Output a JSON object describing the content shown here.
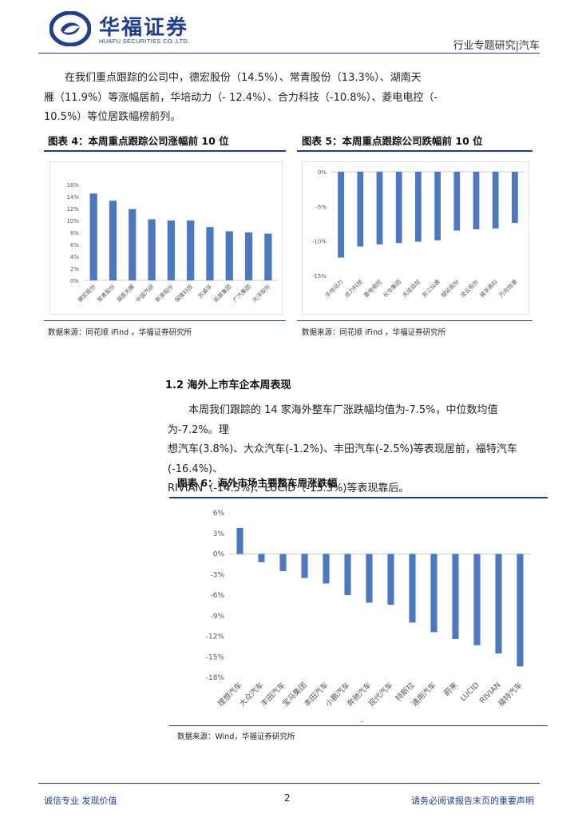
{
  "header": {
    "logo_cn": "华福证券",
    "logo_en": "HUAFU SECURITIES CO.,LTD.",
    "report_type": "行业专题研究|汽车"
  },
  "paragraph1": {
    "line1": "在我们重点跟踪的公司中，德宏股份（14.5%）、常青股份（13.3%）、湖南天",
    "line2": "雁（11.9%）等涨幅居前，华培动力（- 12.4%）、合力科技（-10.8%）、菱电电控（-",
    "line3": "10.5%）等位居跌幅榜前列。"
  },
  "fig4": {
    "title": "图表 4：本周重点跟踪公司涨幅前 10 位",
    "source": "数据来源：同花顺 iFind ，华福证券研究所"
  },
  "fig5": {
    "title": "图表 5：本周重点跟踪公司跌幅前 10 位",
    "source": "数据来源：同花顺 iFind ，华福证券研究所"
  },
  "section": {
    "title": "1.2  海外上市车企本周表现"
  },
  "paragraph2": {
    "line1": "本周我们跟踪的 14 家海外整车厂涨跌幅均值为-7.5%，中位数均值为-7.2%。理",
    "line2": "想汽车(3.8%)、大众汽车(-1.2%)、丰田汽车(-2.5%)等表现居前，福特汽车(-16.4%)、",
    "line3": "RIVIAN（-14.5%)、LUCID（-13.3%)等表现靠后。"
  },
  "fig6": {
    "title": "图表 6：海外市场主要整车周涨跌幅",
    "source": "数据来源：Wind，华福证券研究所",
    "stray_mark": "_"
  },
  "footer": {
    "left": "诚信专业  发现价值",
    "page": "2",
    "right": "请务必阅读报告末页的重要声明"
  },
  "colors": {
    "bar": "#4a78c2",
    "brand": "#1f3e8f"
  },
  "chart_data": [
    {
      "type": "bar",
      "title": "",
      "categories": [
        "德宏股份",
        "常青股份",
        "湖南天雁",
        "中国汽研",
        "新泉股份",
        "保隆科技",
        "苏威孚",
        "拓普集团",
        "广汽集团",
        "光洋股份"
      ],
      "values": [
        14.5,
        13.3,
        11.9,
        10.2,
        10.0,
        10.0,
        8.9,
        8.2,
        8.0,
        7.8
      ],
      "ylim": [
        0,
        16
      ],
      "yticks": [
        "0%",
        "2%",
        "4%",
        "6%",
        "8%",
        "10%",
        "12%",
        "14%",
        "16%"
      ],
      "grid": false
    },
    {
      "type": "bar",
      "title": "",
      "categories": [
        "华培动力",
        "合力科技",
        "菱电电控",
        "长华集团",
        "天成自控",
        "浙江仙通",
        "银轮股份",
        "凌云股份",
        "威孚高科",
        "万向钱潮"
      ],
      "values": [
        -12.4,
        -10.8,
        -10.5,
        -10.3,
        -10.1,
        -9.9,
        -8.5,
        -8.3,
        -8.2,
        -7.4
      ],
      "ylim": [
        -15,
        0
      ],
      "yticks": [
        "0%",
        "-5%",
        "-10%",
        "-15%"
      ],
      "grid": false
    },
    {
      "type": "bar",
      "title": "",
      "categories": [
        "理想汽车",
        "大众汽车",
        "丰田汽车",
        "宝马集团",
        "本田汽车",
        "小鹏汽车",
        "奔驰汽车",
        "现代汽车",
        "特斯拉",
        "通用汽车",
        "蔚来",
        "LUCID",
        "RIVIAN",
        "福特汽车"
      ],
      "values": [
        3.8,
        -1.2,
        -2.5,
        -3.5,
        -4.3,
        -6.0,
        -7.1,
        -7.4,
        -10.0,
        -11.4,
        -12.4,
        -13.3,
        -14.5,
        -16.4
      ],
      "ylim": [
        -18,
        6
      ],
      "yticks": [
        "6%",
        "3%",
        "0%",
        "-3%",
        "-6%",
        "-9%",
        "-12%",
        "-15%",
        "-18%"
      ],
      "grid": false
    }
  ]
}
